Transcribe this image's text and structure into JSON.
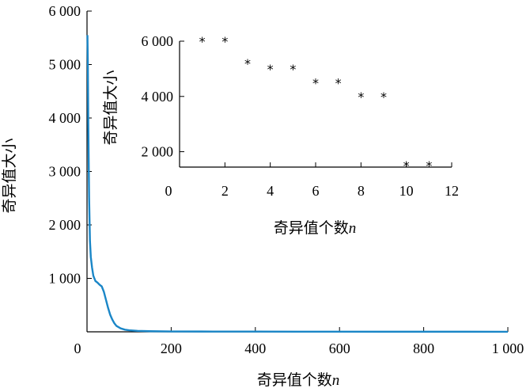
{
  "chart_data": [
    {
      "type": "line",
      "xlabel": "奇异值个数",
      "xlabel_var": "n",
      "ylabel": "奇异值大小",
      "xlim": [
        0,
        1000
      ],
      "ylim": [
        0,
        6000
      ],
      "x_ticks": [
        {
          "value": 0,
          "label": "0"
        },
        {
          "value": 200,
          "label": "200"
        },
        {
          "value": 400,
          "label": "400"
        },
        {
          "value": 600,
          "label": "600"
        },
        {
          "value": 800,
          "label": "800"
        },
        {
          "value": 1000,
          "label": "1 000"
        }
      ],
      "y_ticks": [
        {
          "value": 1000,
          "label": "1 000"
        },
        {
          "value": 2000,
          "label": "2 000"
        },
        {
          "value": 3000,
          "label": "3 000"
        },
        {
          "value": 4000,
          "label": "4 000"
        },
        {
          "value": 5000,
          "label": "5 000"
        },
        {
          "value": 6000,
          "label": "6 000"
        }
      ],
      "series": [
        {
          "color": "#1a86c7",
          "x": [
            1,
            2,
            3,
            5,
            7,
            9,
            12,
            15,
            20,
            25,
            30,
            35,
            40,
            45,
            50,
            55,
            60,
            65,
            70,
            80,
            90,
            100,
            120,
            150,
            200,
            300,
            400,
            500,
            600,
            700,
            800,
            900,
            1000
          ],
          "y": [
            5550,
            5000,
            3900,
            2500,
            1700,
            1400,
            1200,
            1050,
            950,
            920,
            880,
            850,
            750,
            600,
            450,
            320,
            230,
            160,
            110,
            65,
            40,
            28,
            18,
            11,
            7,
            5,
            4,
            3,
            3,
            2,
            2,
            2,
            1
          ]
        }
      ]
    },
    {
      "type": "scatter",
      "xlabel": "奇异值个数",
      "xlabel_var": "n",
      "ylabel": "奇异值大小",
      "xlim": [
        0,
        12
      ],
      "ylim": [
        1500,
        6000
      ],
      "marker": "*",
      "x_ticks": [
        {
          "value": 0,
          "label": "0"
        },
        {
          "value": 2,
          "label": "2"
        },
        {
          "value": 4,
          "label": "4"
        },
        {
          "value": 6,
          "label": "6"
        },
        {
          "value": 8,
          "label": "8"
        },
        {
          "value": 10,
          "label": "10"
        },
        {
          "value": 12,
          "label": "12"
        }
      ],
      "y_ticks": [
        {
          "value": 2000,
          "label": "2 000"
        },
        {
          "value": 4000,
          "label": "4 000"
        },
        {
          "value": 6000,
          "label": "6 000"
        }
      ],
      "x": [
        1,
        2,
        3,
        4,
        5,
        6,
        7,
        8,
        9,
        10,
        11
      ],
      "y": [
        6000,
        6000,
        5200,
        5000,
        5000,
        4500,
        4500,
        4000,
        4000,
        1500,
        1500
      ]
    }
  ]
}
